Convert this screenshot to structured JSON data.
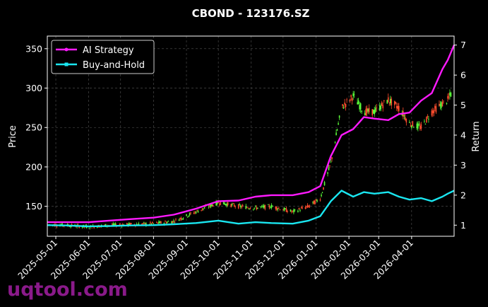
{
  "chart_data": {
    "type": "line",
    "title": "CBOND - 123176.SZ",
    "ylabel": "Price",
    "y2label": "Return",
    "x_ticks": [
      "2025-05-01",
      "2025-06-01",
      "2025-07-01",
      "2025-08-01",
      "2025-09-01",
      "2025-10-01",
      "2025-11-01",
      "2025-12-01",
      "2026-01-01",
      "2026-02-01",
      "2026-03-01",
      "2026-04-01"
    ],
    "xlim": [
      "2025-04-23",
      "2026-05-11"
    ],
    "y_ticks": [
      150,
      200,
      250,
      300,
      350
    ],
    "ylim": [
      112,
      366
    ],
    "y2_ticks": [
      1,
      2,
      3,
      4,
      5,
      6,
      7
    ],
    "y2lim": [
      0.63,
      7.3
    ],
    "grid": true,
    "legend_position": "top-left",
    "colors": {
      "ai_strategy": "#ff1aff",
      "buy_and_hold": "#1ae6f0",
      "up_candle": "#5cff3a",
      "down_candle": "#ff4d2e"
    },
    "watermark": "uqtool.com",
    "series": [
      {
        "name": "AI Strategy",
        "axis": "right",
        "x": [
          "2025-04-23",
          "2025-05-10",
          "2025-06-01",
          "2025-06-20",
          "2025-07-10",
          "2025-08-01",
          "2025-08-20",
          "2025-09-10",
          "2025-10-01",
          "2025-10-20",
          "2025-11-05",
          "2025-11-20",
          "2025-12-10",
          "2025-12-25",
          "2026-01-05",
          "2026-01-15",
          "2026-01-25",
          "2026-02-05",
          "2026-02-15",
          "2026-02-25",
          "2026-03-10",
          "2026-03-20",
          "2026-03-30",
          "2026-04-10",
          "2026-04-20",
          "2026-04-30",
          "2026-05-05",
          "2026-05-11"
        ],
        "values": [
          1.1,
          1.1,
          1.1,
          1.15,
          1.2,
          1.25,
          1.35,
          1.55,
          1.8,
          1.82,
          1.95,
          2.0,
          2.0,
          2.1,
          2.3,
          3.3,
          4.0,
          4.2,
          4.6,
          4.55,
          4.5,
          4.7,
          4.75,
          5.15,
          5.4,
          6.2,
          6.5,
          7.0
        ]
      },
      {
        "name": "Buy-and-Hold",
        "axis": "right",
        "x": [
          "2025-04-23",
          "2025-05-10",
          "2025-06-01",
          "2025-06-20",
          "2025-07-10",
          "2025-08-01",
          "2025-08-20",
          "2025-09-10",
          "2025-10-01",
          "2025-10-20",
          "2025-11-05",
          "2025-11-20",
          "2025-12-10",
          "2025-12-25",
          "2026-01-05",
          "2026-01-15",
          "2026-01-25",
          "2026-02-05",
          "2026-02-15",
          "2026-02-25",
          "2026-03-10",
          "2026-03-20",
          "2026-03-30",
          "2026-04-10",
          "2026-04-20",
          "2026-04-30",
          "2026-05-05",
          "2026-05-11"
        ],
        "values": [
          1.0,
          0.99,
          0.96,
          0.97,
          0.99,
          1.0,
          1.03,
          1.07,
          1.15,
          1.05,
          1.1,
          1.07,
          1.05,
          1.15,
          1.3,
          1.8,
          2.15,
          1.95,
          2.1,
          2.05,
          2.1,
          1.95,
          1.85,
          1.9,
          1.8,
          1.95,
          2.05,
          2.15
        ]
      },
      {
        "name": "Price",
        "axis": "left",
        "x": [
          "2025-04-23",
          "2025-05-10",
          "2025-06-01",
          "2025-06-20",
          "2025-07-10",
          "2025-08-01",
          "2025-08-20",
          "2025-09-10",
          "2025-10-01",
          "2025-10-20",
          "2025-11-05",
          "2025-11-20",
          "2025-12-10",
          "2025-12-25",
          "2026-01-05",
          "2026-01-15",
          "2026-01-25",
          "2026-02-05",
          "2026-02-15",
          "2026-02-25",
          "2026-03-10",
          "2026-03-20",
          "2026-03-30",
          "2026-04-10",
          "2026-04-20",
          "2026-04-30",
          "2026-05-05",
          "2026-05-11"
        ],
        "values": [
          127,
          126,
          124,
          126,
          127,
          128,
          131,
          143,
          155,
          150,
          148,
          150,
          143,
          150,
          160,
          205,
          275,
          290,
          270,
          270,
          285,
          275,
          255,
          250,
          270,
          280,
          285,
          300
        ]
      }
    ]
  }
}
